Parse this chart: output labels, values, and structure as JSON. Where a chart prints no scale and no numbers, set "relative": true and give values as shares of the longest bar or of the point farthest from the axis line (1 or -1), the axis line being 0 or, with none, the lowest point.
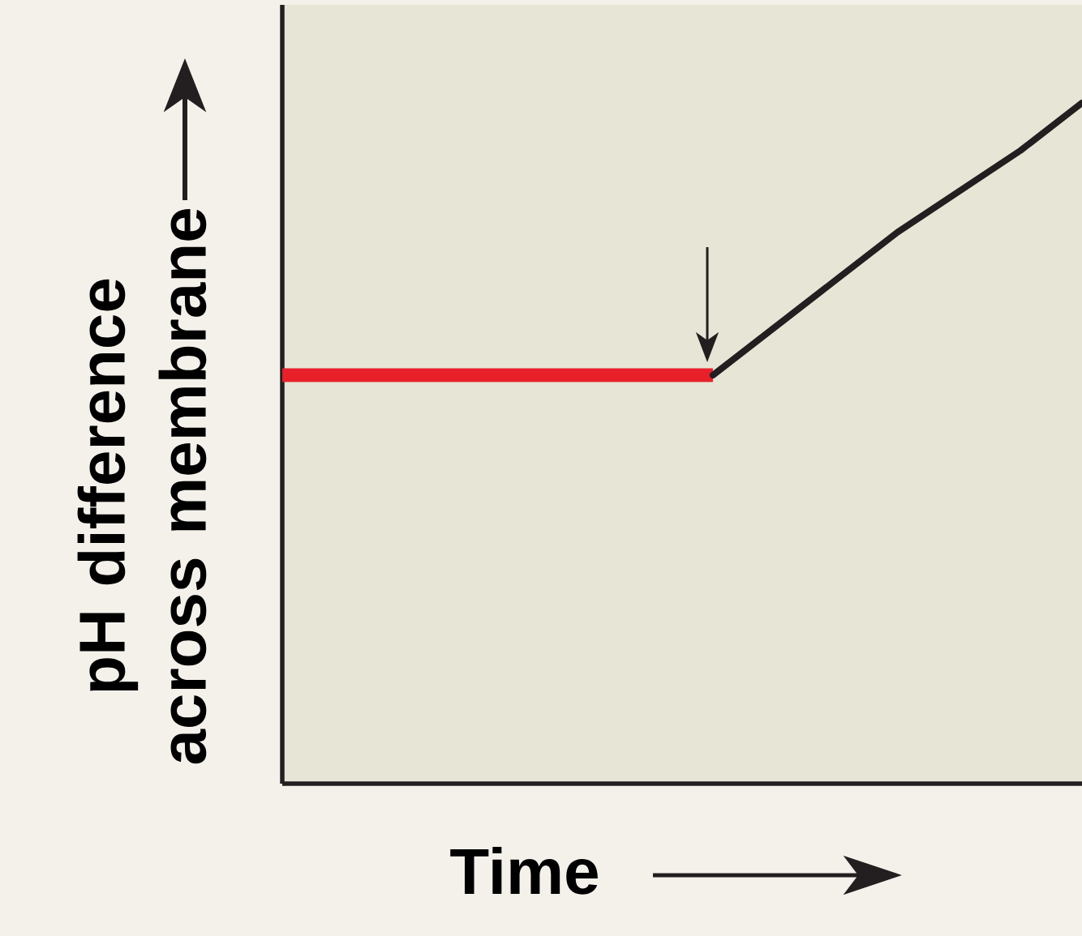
{
  "chart_data": {
    "type": "line",
    "relative": true,
    "xlabel": "Time",
    "ylabel": "pH difference across membrane",
    "categories": [
      null,
      null,
      null,
      null,
      null,
      null,
      null,
      null,
      null,
      null,
      null,
      null,
      null,
      null
    ],
    "series": [
      {
        "color": "#e8202a",
        "values": [
          0.6,
          0.6,
          0.6,
          0.6,
          0.6,
          0.6,
          0.6,
          0.6,
          null,
          null,
          null,
          null,
          null,
          null
        ]
      },
      {
        "color": "#231f20",
        "values": [
          null,
          null,
          null,
          null,
          null,
          null,
          null,
          0.6,
          0.67,
          0.74,
          0.81,
          0.87,
          0.93,
          1.0
        ]
      }
    ]
  }
}
